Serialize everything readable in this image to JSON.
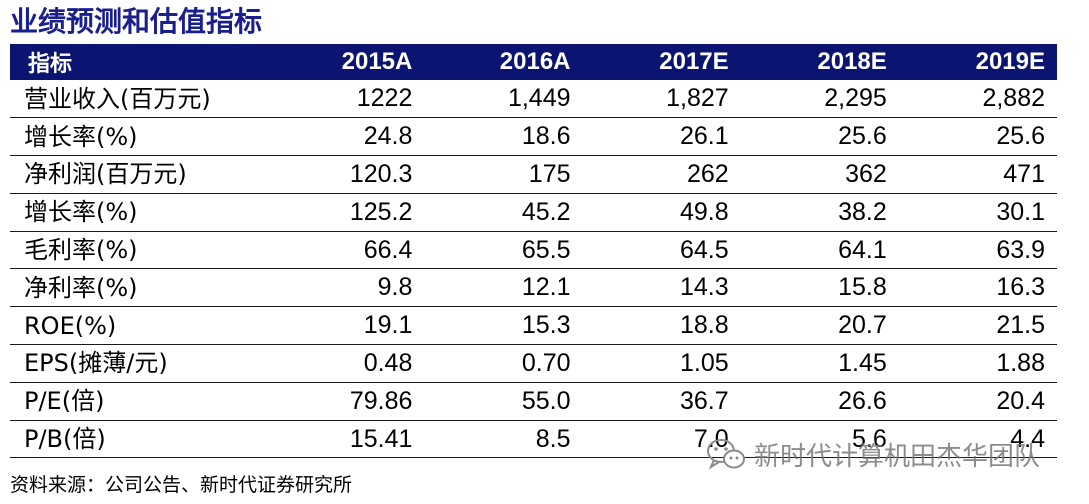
{
  "title": "业绩预测和估值指标",
  "table": {
    "headers": [
      "指标",
      "2015A",
      "2016A",
      "2017E",
      "2018E",
      "2019E"
    ],
    "rows": [
      {
        "label": "营业收入(百万元)",
        "values": [
          "1222",
          "1,449",
          "1,827",
          "2,295",
          "2,882"
        ]
      },
      {
        "label": "增长率(%)",
        "values": [
          "24.8",
          "18.6",
          "26.1",
          "25.6",
          "25.6"
        ]
      },
      {
        "label": "净利润(百万元)",
        "values": [
          "120.3",
          "175",
          "262",
          "362",
          "471"
        ]
      },
      {
        "label": "增长率(%)",
        "values": [
          "125.2",
          "45.2",
          "49.8",
          "38.2",
          "30.1"
        ]
      },
      {
        "label": "毛利率(%)",
        "values": [
          "66.4",
          "65.5",
          "64.5",
          "64.1",
          "63.9"
        ]
      },
      {
        "label": "净利率(%)",
        "values": [
          "9.8",
          "12.1",
          "14.3",
          "15.8",
          "16.3"
        ]
      },
      {
        "label": "ROE(%)",
        "values": [
          "19.1",
          "15.3",
          "18.8",
          "20.7",
          "21.5"
        ]
      },
      {
        "label": "EPS(摊薄/元)",
        "values": [
          "0.48",
          "0.70",
          "1.05",
          "1.45",
          "1.88"
        ]
      },
      {
        "label": "P/E(倍)",
        "values": [
          "79.86",
          "55.0",
          "36.7",
          "26.6",
          "20.4"
        ]
      },
      {
        "label": "P/B(倍)",
        "values": [
          "15.41",
          "8.5",
          "7.0",
          "5.6",
          "4.4"
        ]
      }
    ]
  },
  "source": "资料来源：公司公告、新时代证券研究所",
  "watermark": {
    "text": "新时代计算机田杰华团队",
    "icon": "wechat-icon"
  },
  "colors": {
    "title": "#1a1f8c",
    "header_bg": "#0c1472",
    "header_text": "#ffffff"
  }
}
